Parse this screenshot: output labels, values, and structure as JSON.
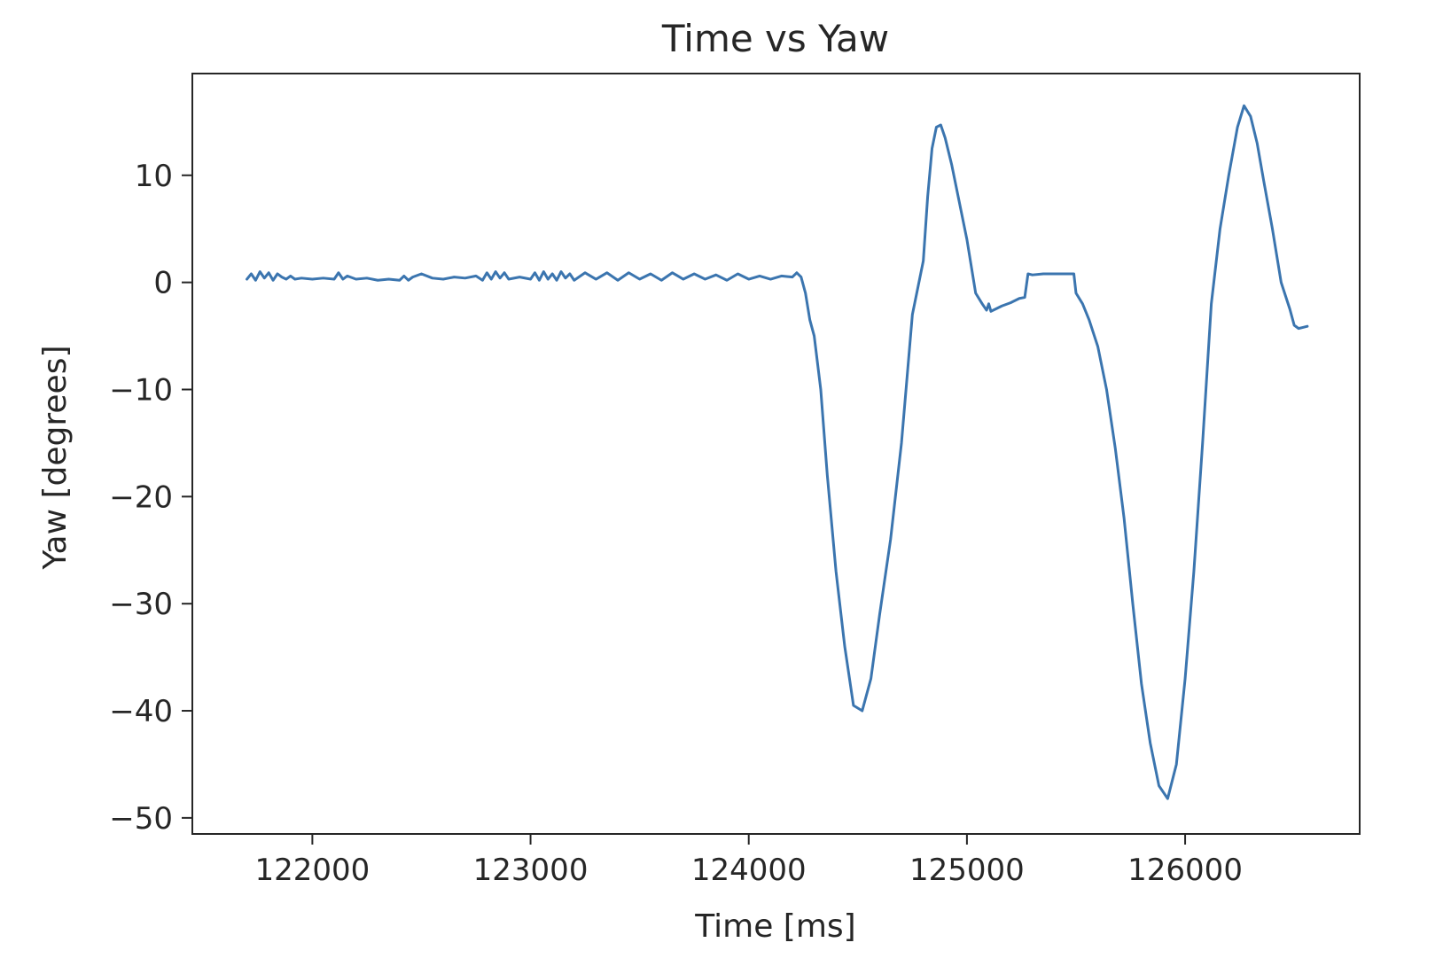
{
  "chart_data": {
    "type": "line",
    "title": "Time vs Yaw",
    "xlabel": "Time [ms]",
    "ylabel": "Yaw [degrees]",
    "xlim": [
      121450,
      126800
    ],
    "ylim": [
      -51.5,
      19.5
    ],
    "x_ticks": [
      122000,
      123000,
      124000,
      125000,
      126000
    ],
    "y_ticks": [
      10,
      0,
      -10,
      -20,
      -30,
      -40,
      -50
    ],
    "x_tick_labels": [
      "122000",
      "123000",
      "124000",
      "125000",
      "126000"
    ],
    "y_tick_labels": [
      "10",
      "0",
      "−10",
      "−20",
      "−30",
      "−40",
      "−50"
    ],
    "grid": false,
    "line_color": "#3b75af",
    "series": [
      {
        "x": [
          121700,
          121720,
          121740,
          121760,
          121780,
          121800,
          121820,
          121840,
          121860,
          121880,
          121900,
          121920,
          121950,
          122000,
          122050,
          122100,
          122120,
          122140,
          122160,
          122200,
          122250,
          122300,
          122350,
          122400,
          122420,
          122440,
          122460,
          122500,
          122550,
          122600,
          122650,
          122700,
          122750,
          122780,
          122800,
          122820,
          122840,
          122860,
          122880,
          122900,
          122950,
          123000,
          123020,
          123040,
          123060,
          123080,
          123100,
          123120,
          123140,
          123160,
          123180,
          123200,
          123250,
          123300,
          123350,
          123400,
          123450,
          123500,
          123550,
          123600,
          123650,
          123700,
          123750,
          123800,
          123850,
          123900,
          123950,
          124000,
          124050,
          124100,
          124150,
          124200,
          124220,
          124240,
          124260,
          124280,
          124300,
          124330,
          124360,
          124400,
          124440,
          124480,
          124520,
          124560,
          124600,
          124650,
          124700,
          124750,
          124800,
          124820,
          124840,
          124860,
          124880,
          124900,
          124930,
          124960,
          125000,
          125040,
          125070,
          125090,
          125100,
          125110,
          125130,
          125160,
          125200,
          125240,
          125265,
          125280,
          125300,
          125350,
          125400,
          125450,
          125490,
          125500,
          125530,
          125560,
          125600,
          125640,
          125680,
          125720,
          125760,
          125800,
          125840,
          125880,
          125920,
          125960,
          126000,
          126040,
          126080,
          126120,
          126160,
          126200,
          126240,
          126270,
          126300,
          126330,
          126360,
          126400,
          126440,
          126480,
          126500,
          126520,
          126540,
          126560
        ],
        "y": [
          0.3,
          0.8,
          0.2,
          1.0,
          0.4,
          0.9,
          0.2,
          0.8,
          0.5,
          0.3,
          0.6,
          0.3,
          0.4,
          0.3,
          0.4,
          0.3,
          0.9,
          0.3,
          0.6,
          0.3,
          0.4,
          0.2,
          0.3,
          0.2,
          0.6,
          0.2,
          0.5,
          0.8,
          0.4,
          0.3,
          0.5,
          0.4,
          0.6,
          0.2,
          0.9,
          0.3,
          1.0,
          0.4,
          0.9,
          0.3,
          0.5,
          0.3,
          0.9,
          0.2,
          1.0,
          0.3,
          0.8,
          0.2,
          1.0,
          0.4,
          0.8,
          0.2,
          0.9,
          0.3,
          0.9,
          0.2,
          0.9,
          0.3,
          0.8,
          0.2,
          0.9,
          0.3,
          0.8,
          0.3,
          0.7,
          0.2,
          0.8,
          0.3,
          0.6,
          0.3,
          0.6,
          0.5,
          0.9,
          0.5,
          -1.0,
          -3.5,
          -5.0,
          -10.0,
          -18.0,
          -27.0,
          -34.0,
          -39.5,
          -40.0,
          -37.0,
          -31.0,
          -24.0,
          -15.0,
          -3.0,
          2.0,
          8.0,
          12.5,
          14.5,
          14.7,
          13.5,
          11.0,
          8.0,
          4.0,
          -1.0,
          -2.0,
          -2.6,
          -2.0,
          -2.7,
          -2.5,
          -2.2,
          -1.9,
          -1.5,
          -1.4,
          0.8,
          0.7,
          0.8,
          0.8,
          0.8,
          0.8,
          -1.0,
          -2.0,
          -3.5,
          -6.0,
          -10.0,
          -15.5,
          -22.0,
          -30.0,
          -37.5,
          -43.0,
          -47.0,
          -48.2,
          -45.0,
          -37.0,
          -27.0,
          -15.0,
          -2.0,
          5.0,
          10.0,
          14.5,
          16.5,
          15.5,
          13.0,
          9.5,
          5.0,
          0.0,
          -2.5,
          -4.0,
          -4.3,
          -4.2,
          -4.1
        ]
      }
    ]
  }
}
